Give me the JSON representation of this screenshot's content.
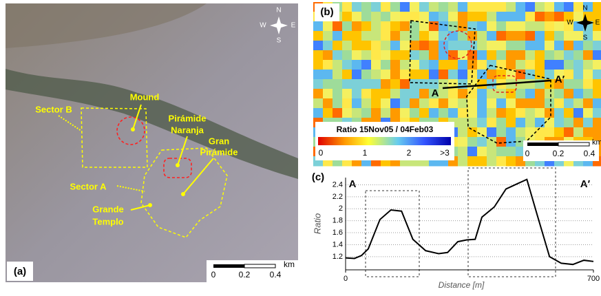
{
  "panel_a": {
    "label": "(a)",
    "compass": [
      "N",
      "S",
      "W",
      "E"
    ],
    "annotations": {
      "mound": "Mound",
      "sector_b": "Sector B",
      "piramide_naranja": [
        "Pirámide",
        "Naranja"
      ],
      "gran_piramide": [
        "Gran",
        "Pirámide"
      ],
      "sector_a": "Sector A",
      "grande_templo": [
        "Grande",
        "Templo"
      ]
    },
    "scale_bar": [
      "0",
      "0.2",
      "0.4",
      "km"
    ]
  },
  "panel_b": {
    "label": "(b)",
    "compass": [
      "N",
      "S",
      "W",
      "E"
    ],
    "profile_start": "A",
    "profile_end": "A′",
    "colorbar_title": "Ratio 15Nov05 / 04Feb03",
    "colorbar_labels": [
      "0",
      "1",
      "2",
      ">3"
    ],
    "scale_bar": [
      "0",
      "0.2",
      "0.4",
      "km"
    ]
  },
  "chart_data": {
    "type": "line",
    "panel_label": "(c)",
    "start_label": "A",
    "end_label": "A′",
    "x_label": "Distance [m]",
    "y_label": "Ratio",
    "color": "#000000",
    "grid": true,
    "x": [
      0,
      25,
      45,
      64,
      97,
      128,
      158,
      190,
      226,
      263,
      288,
      317,
      342,
      366,
      385,
      420,
      453,
      486,
      512,
      541,
      576,
      609,
      642,
      673,
      700
    ],
    "values": [
      1.18,
      1.17,
      1.22,
      1.33,
      1.82,
      1.98,
      1.96,
      1.49,
      1.3,
      1.25,
      1.27,
      1.45,
      1.48,
      1.49,
      1.86,
      2.03,
      2.33,
      2.42,
      2.49,
      1.9,
      1.2,
      1.09,
      1.07,
      1.14,
      1.12
    ],
    "xlim": [
      0,
      700
    ],
    "xticks": [
      0,
      700
    ],
    "ylim": [
      0.98,
      2.52
    ],
    "yticks": [
      1.2,
      1.4,
      1.6,
      1.8,
      2,
      2.2,
      2.4
    ]
  }
}
